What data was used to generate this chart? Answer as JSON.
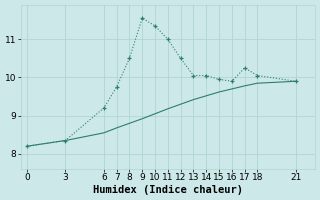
{
  "xlabel": "Humidex (Indice chaleur)",
  "bg_color": "#cce8e8",
  "line_color": "#2e7d6e",
  "xticks": [
    0,
    3,
    6,
    7,
    8,
    9,
    10,
    11,
    12,
    13,
    14,
    15,
    16,
    17,
    18,
    21
  ],
  "yticks": [
    8,
    9,
    10,
    11
  ],
  "ylim": [
    7.6,
    11.9
  ],
  "xlim": [
    -0.5,
    22.5
  ],
  "line1_x": [
    0,
    3,
    6,
    7,
    8,
    9,
    10,
    11,
    12,
    13,
    14,
    15,
    16,
    17,
    18,
    21
  ],
  "line1_y": [
    8.2,
    8.35,
    9.2,
    9.75,
    10.5,
    11.55,
    11.35,
    11.0,
    10.5,
    10.05,
    10.05,
    9.95,
    9.9,
    10.25,
    10.05,
    9.9
  ],
  "line2_x": [
    0,
    3,
    6,
    7,
    8,
    9,
    10,
    11,
    12,
    13,
    14,
    15,
    16,
    17,
    18,
    21
  ],
  "line2_y": [
    8.2,
    8.35,
    8.55,
    8.68,
    8.8,
    8.92,
    9.05,
    9.18,
    9.3,
    9.42,
    9.52,
    9.62,
    9.7,
    9.78,
    9.85,
    9.9
  ],
  "grid_color": "#b0d4d4",
  "tick_fontsize": 6.5,
  "xlabel_fontsize": 7.5
}
